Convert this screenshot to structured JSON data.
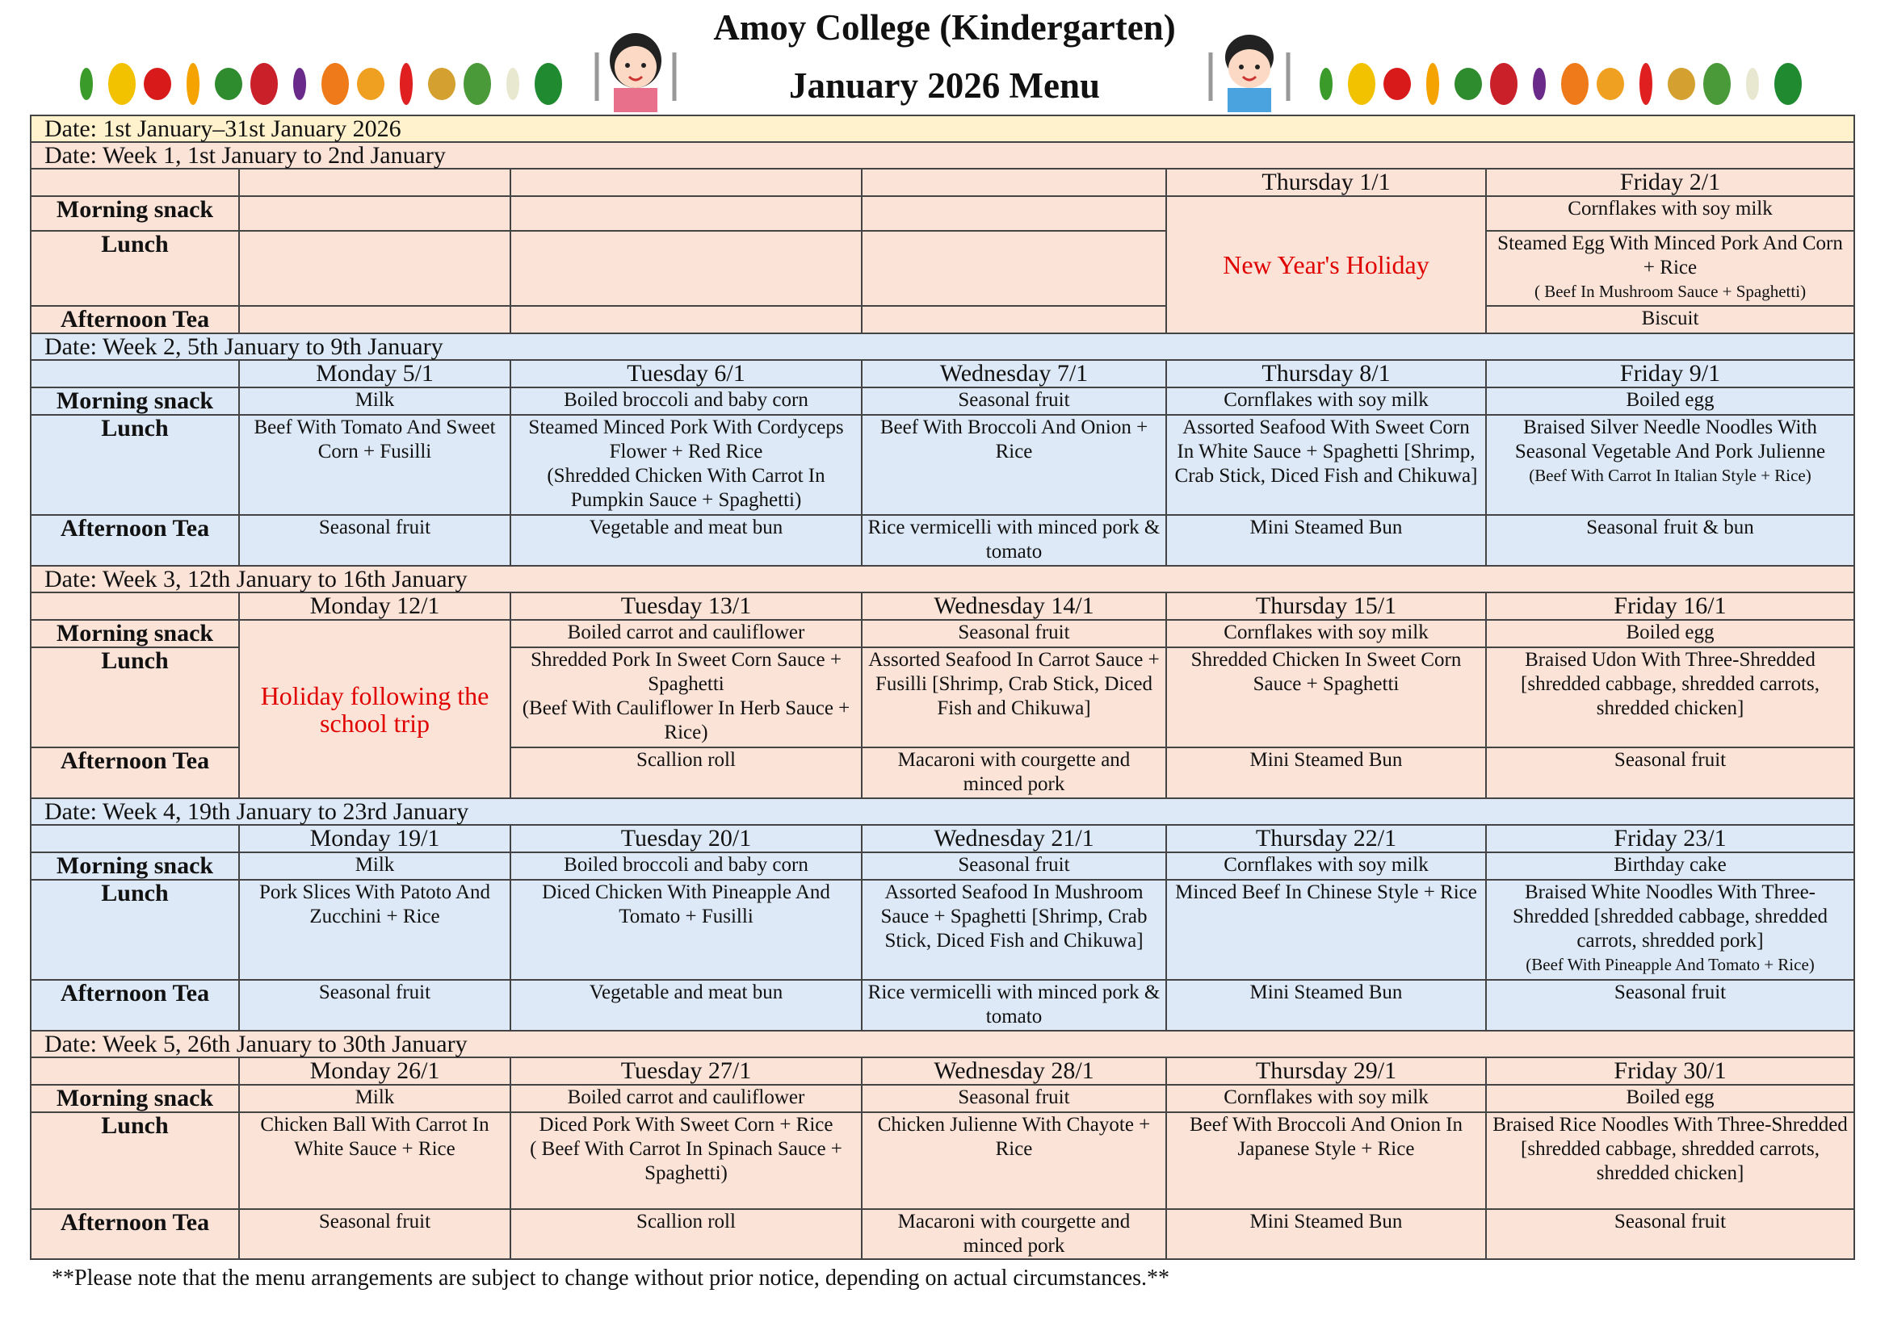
{
  "header": {
    "school": "Amoy College (Kindergarten)",
    "menu_title": "January 2026 Menu"
  },
  "overall_date": "Date: 1st January–31st January 2026",
  "row_labels": {
    "snack": "Morning snack",
    "lunch": "Lunch",
    "tea": "Afternoon Tea"
  },
  "colors": {
    "pink": "#fbe3d8",
    "blue": "#dde9f6",
    "yellow": "#fff2cc",
    "holiday": "#e00000"
  },
  "weeks": [
    {
      "label": "Date: Week 1, 1st January to 2nd January",
      "theme": "pink",
      "days": [
        {
          "name": "",
          "snack": "",
          "lunch": "",
          "tea": ""
        },
        {
          "name": "",
          "snack": "",
          "lunch": "",
          "tea": ""
        },
        {
          "name": "",
          "snack": "",
          "lunch": "",
          "tea": ""
        },
        {
          "name": "Thursday 1/1",
          "holiday": "New Year's Holiday"
        },
        {
          "name": "Friday 2/1",
          "snack": "Cornflakes with soy milk",
          "lunch": "Steamed Egg With Minced Pork And Corn + Rice",
          "alt_small": "( Beef In Mushroom Sauce + Spaghetti)",
          "tea": "Biscuit"
        }
      ]
    },
    {
      "label": "Date: Week 2, 5th January to 9th January",
      "theme": "blue",
      "days": [
        {
          "name": "Monday 5/1",
          "snack": "Milk",
          "lunch": "Beef With Tomato And Sweet Corn + Fusilli",
          "tea": "Seasonal fruit"
        },
        {
          "name": "Tuesday 6/1",
          "snack": "Boiled broccoli and baby corn",
          "lunch": "Steamed Minced Pork With Cordyceps Flower + Red Rice",
          "alt": "(Shredded Chicken With Carrot In Pumpkin Sauce + Spaghetti)",
          "tea": "Vegetable and meat bun"
        },
        {
          "name": "Wednesday 7/1",
          "snack": "Seasonal fruit",
          "lunch": "Beef With Broccoli And Onion + Rice",
          "tea": "Rice vermicelli with minced pork & tomato"
        },
        {
          "name": "Thursday 8/1",
          "snack": "Cornflakes with soy milk",
          "lunch": "Assorted Seafood With Sweet Corn In White Sauce + Spaghetti [Shrimp, Crab Stick, Diced Fish and Chikuwa]",
          "tea": "Mini Steamed Bun"
        },
        {
          "name": "Friday 9/1",
          "snack": "Boiled egg",
          "lunch": "Braised Silver Needle Noodles With Seasonal Vegetable And Pork Julienne",
          "alt_small": "(Beef With Carrot In Italian Style + Rice)",
          "tea": "Seasonal fruit & bun"
        }
      ]
    },
    {
      "label": "Date: Week 3, 12th January to 16th January",
      "theme": "pink",
      "days": [
        {
          "name": "Monday 12/1",
          "holiday": "Holiday following the school trip"
        },
        {
          "name": "Tuesday 13/1",
          "snack": "Boiled carrot and cauliflower",
          "lunch": "Shredded Pork In Sweet Corn Sauce + Spaghetti",
          "alt": "(Beef With Cauliflower In Herb Sauce + Rice)",
          "tea": "Scallion roll"
        },
        {
          "name": "Wednesday 14/1",
          "snack": "Seasonal fruit",
          "lunch": "Assorted Seafood In Carrot Sauce + Fusilli [Shrimp, Crab Stick, Diced Fish and Chikuwa]",
          "tea": "Macaroni with courgette and minced pork"
        },
        {
          "name": "Thursday 15/1",
          "snack": "Cornflakes with soy milk",
          "lunch": "Shredded Chicken In Sweet Corn Sauce + Spaghetti",
          "tea": "Mini Steamed Bun"
        },
        {
          "name": "Friday 16/1",
          "snack": "Boiled egg",
          "lunch": "Braised Udon With Three-Shredded [shredded cabbage, shredded carrots, shredded chicken]",
          "tea": "Seasonal fruit"
        }
      ]
    },
    {
      "label": "Date: Week 4, 19th January to 23rd January",
      "theme": "blue",
      "days": [
        {
          "name": "Monday 19/1",
          "snack": "Milk",
          "lunch": "Pork Slices With Patoto And Zucchini + Rice",
          "tea": "Seasonal fruit"
        },
        {
          "name": "Tuesday 20/1",
          "snack": "Boiled broccoli and baby corn",
          "lunch": "Diced Chicken With Pineapple And Tomato + Fusilli",
          "tea": "Vegetable and meat bun"
        },
        {
          "name": "Wednesday 21/1",
          "snack": "Seasonal fruit",
          "lunch": "Assorted Seafood In Mushroom Sauce + Spaghetti [Shrimp, Crab Stick, Diced Fish and Chikuwa]",
          "tea": "Rice vermicelli with minced pork & tomato"
        },
        {
          "name": "Thursday 22/1",
          "snack": "Cornflakes with soy milk",
          "lunch": "Minced Beef In Chinese Style + Rice",
          "tea": "Mini Steamed Bun"
        },
        {
          "name": "Friday 23/1",
          "snack": "Birthday cake",
          "lunch": "Braised White Noodles With Three-Shredded [shredded cabbage, shredded carrots, shredded pork]",
          "alt_small": "(Beef With Pineapple And Tomato + Rice)",
          "tea": "Seasonal fruit"
        }
      ]
    },
    {
      "label": "Date: Week 5, 26th January to 30th January",
      "theme": "pink",
      "days": [
        {
          "name": "Monday 26/1",
          "snack": "Milk",
          "lunch": "Chicken Ball With Carrot In White Sauce + Rice",
          "tea": "Seasonal fruit"
        },
        {
          "name": "Tuesday 27/1",
          "snack": "Boiled carrot and cauliflower",
          "lunch": "Diced Pork With Sweet Corn + Rice",
          "alt": "( Beef With Carrot In Spinach Sauce + Spaghetti)",
          "tea": "Scallion roll"
        },
        {
          "name": "Wednesday 28/1",
          "snack": "Seasonal fruit",
          "lunch": "Chicken Julienne With Chayote + Rice",
          "tea": "Macaroni with courgette and minced pork"
        },
        {
          "name": "Thursday 29/1",
          "snack": "Cornflakes with soy milk",
          "lunch": "Beef With Broccoli And Onion In Japanese Style + Rice",
          "tea": "Mini Steamed Bun"
        },
        {
          "name": "Friday 30/1",
          "snack": "Boiled egg",
          "lunch": "Braised Rice Noodles With Three-Shredded [shredded cabbage, shredded carrots, shredded chicken]",
          "tea": "Seasonal fruit"
        }
      ]
    }
  ],
  "footnote": "**Please note that the menu arrangements are subject to change without prior notice, depending on actual circumstances.**",
  "decorations": [
    "vegetables-left",
    "girl-with-fork-and-spoon",
    "boy-with-fork-and-spoon",
    "vegetables-right"
  ]
}
